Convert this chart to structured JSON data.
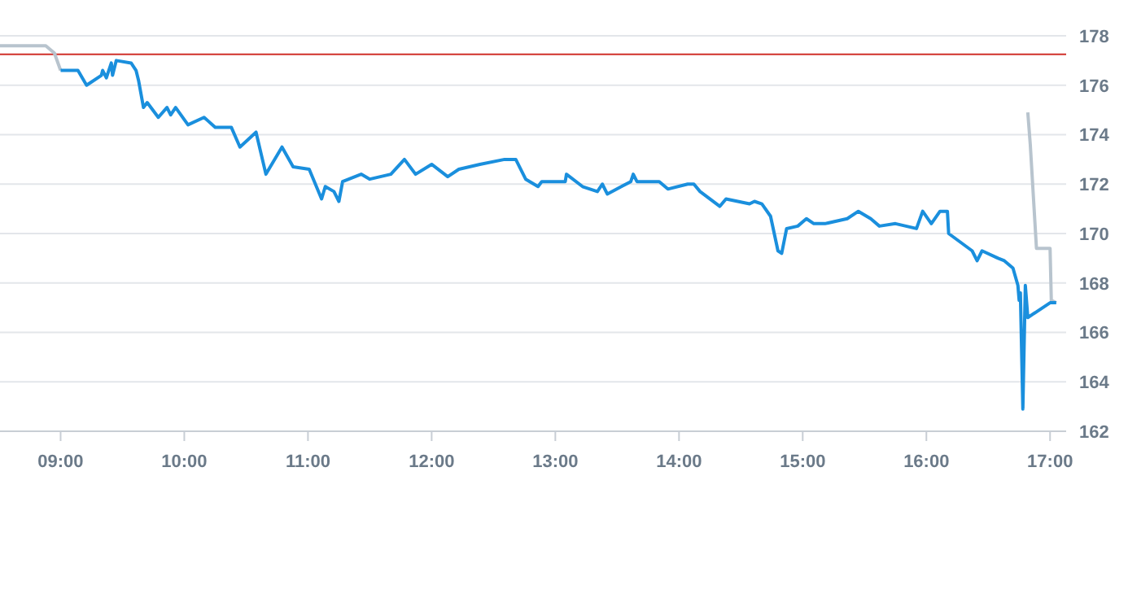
{
  "chart_data": {
    "type": "line",
    "xlim": [
      8.51,
      17.13
    ],
    "xticks": [
      {
        "value": 9,
        "label": "09:00"
      },
      {
        "value": 10,
        "label": "10:00"
      },
      {
        "value": 11,
        "label": "11:00"
      },
      {
        "value": 12,
        "label": "12:00"
      },
      {
        "value": 13,
        "label": "13:00"
      },
      {
        "value": 14,
        "label": "14:00"
      },
      {
        "value": 15,
        "label": "15:00"
      },
      {
        "value": 16,
        "label": "16:00"
      },
      {
        "value": 17,
        "label": "17:00"
      }
    ],
    "ylim": [
      162,
      178
    ],
    "yticks": [
      162,
      164,
      166,
      168,
      170,
      172,
      174,
      176,
      178
    ],
    "grid": "y",
    "marker": "none",
    "line_style": "solid",
    "ref_lines": [
      {
        "axis": "y",
        "value": 177.25,
        "color": "#d0302a"
      }
    ],
    "series": [
      {
        "color": "#b8c4ce",
        "x": [
          8.51,
          8.88,
          8.95,
          9.0
        ],
        "values": [
          177.6,
          177.6,
          177.3,
          176.6
        ]
      },
      {
        "color": "#b8c4ce",
        "x": [
          16.82,
          16.84,
          16.89,
          17.0,
          17.01,
          17.05
        ],
        "values": [
          174.9,
          173.6,
          169.4,
          169.4,
          167.3,
          167.2
        ]
      },
      {
        "color": "#1a8fdd",
        "x": [
          9.0,
          9.14,
          9.21,
          9.33,
          9.34,
          9.37,
          9.41,
          9.42,
          9.45,
          9.57,
          9.61,
          9.63,
          9.67,
          9.7,
          9.79,
          9.86,
          9.89,
          9.93,
          10.03,
          10.16,
          10.25,
          10.38,
          10.45,
          10.58,
          10.66,
          10.79,
          10.88,
          11.01,
          11.11,
          11.14,
          11.21,
          11.25,
          11.28,
          11.43,
          11.5,
          11.67,
          11.78,
          11.87,
          12.0,
          12.13,
          12.22,
          12.39,
          12.59,
          12.68,
          12.76,
          12.86,
          12.89,
          13.08,
          13.09,
          13.22,
          13.34,
          13.38,
          13.42,
          13.61,
          13.63,
          13.66,
          13.84,
          13.91,
          14.07,
          14.12,
          14.17,
          14.33,
          14.38,
          14.57,
          14.61,
          14.67,
          14.74,
          14.8,
          14.83,
          14.87,
          14.96,
          15.03,
          15.09,
          15.18,
          15.36,
          15.45,
          15.55,
          15.62,
          15.75,
          15.92,
          15.97,
          16.04,
          16.11,
          16.17,
          16.18,
          16.37,
          16.41,
          16.45,
          16.58,
          16.63,
          16.7,
          16.74,
          16.75,
          16.76,
          16.78,
          16.8,
          16.82,
          17.0,
          17.05
        ],
        "values": [
          176.6,
          176.6,
          176.0,
          176.4,
          176.6,
          176.3,
          176.9,
          176.4,
          177.0,
          176.9,
          176.6,
          176.2,
          175.1,
          175.3,
          174.7,
          175.1,
          174.8,
          175.1,
          174.4,
          174.7,
          174.3,
          174.3,
          173.5,
          174.1,
          172.4,
          173.5,
          172.7,
          172.6,
          171.4,
          171.9,
          171.7,
          171.3,
          172.1,
          172.4,
          172.2,
          172.4,
          173.0,
          172.4,
          172.8,
          172.3,
          172.6,
          172.8,
          173.0,
          173.0,
          172.2,
          171.9,
          172.1,
          172.1,
          172.4,
          171.9,
          171.7,
          172.0,
          171.6,
          172.1,
          172.4,
          172.1,
          172.1,
          171.8,
          172.0,
          172.0,
          171.7,
          171.1,
          171.4,
          171.2,
          171.3,
          171.2,
          170.7,
          169.3,
          169.2,
          170.2,
          170.3,
          170.6,
          170.4,
          170.4,
          170.6,
          170.9,
          170.6,
          170.3,
          170.4,
          170.2,
          170.9,
          170.4,
          170.9,
          170.9,
          170.0,
          169.3,
          168.9,
          169.3,
          169.0,
          168.9,
          168.6,
          167.9,
          167.3,
          167.6,
          162.9,
          167.9,
          166.6,
          167.2,
          167.2
        ]
      }
    ]
  }
}
